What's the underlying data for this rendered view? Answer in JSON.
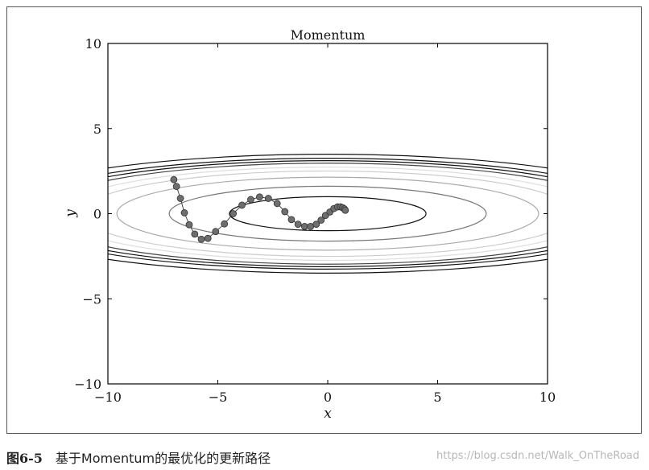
{
  "chart_data": {
    "type": "scatter",
    "title": "Momentum",
    "xlabel": "x",
    "ylabel": "y",
    "xlim": [
      -10,
      10
    ],
    "ylim": [
      -10,
      10
    ],
    "x_ticks": [
      "−10",
      "−5",
      "0",
      "5",
      "10"
    ],
    "y_ticks": [
      "10",
      "5",
      "0",
      "−5",
      "−10"
    ],
    "x_tick_values": [
      -10,
      -5,
      0,
      5,
      10
    ],
    "y_tick_values": [
      10,
      5,
      0,
      -5,
      -10
    ],
    "contour_function": "f(x, y) = x^2/20 + y^2",
    "contour_levels": [
      {
        "level": 1,
        "color": "#111111"
      },
      {
        "level": 2.6,
        "color": "#777777"
      },
      {
        "level": 4.6,
        "color": "#aaaaaa"
      },
      {
        "level": 6.3,
        "color": "#cccccc"
      },
      {
        "level": 7.5,
        "color": "#dddddd"
      },
      {
        "level": 8.8,
        "color": "#444444"
      },
      {
        "level": 9.7,
        "color": "#111111"
      },
      {
        "level": 10.6,
        "color": "#111111"
      },
      {
        "level": 12.2,
        "color": "#111111"
      }
    ],
    "series": [
      {
        "marker_color": "#6e6e6e",
        "x": [
          -7.0,
          -6.88,
          -6.7,
          -6.52,
          -6.3,
          -6.05,
          -5.75,
          -5.45,
          -5.1,
          -4.7,
          -4.3,
          -3.9,
          -3.5,
          -3.1,
          -2.7,
          -2.3,
          -1.95,
          -1.65,
          -1.35,
          -1.05,
          -0.78,
          -0.52,
          -0.3,
          -0.1,
          0.1,
          0.28,
          0.45,
          0.58,
          0.68,
          0.76,
          0.8
        ],
        "y": [
          2.0,
          1.6,
          0.9,
          0.05,
          -0.65,
          -1.2,
          -1.5,
          -1.45,
          -1.05,
          -0.6,
          0.0,
          0.5,
          0.83,
          0.98,
          0.9,
          0.6,
          0.12,
          -0.35,
          -0.62,
          -0.75,
          -0.75,
          -0.62,
          -0.38,
          -0.1,
          0.1,
          0.3,
          0.4,
          0.4,
          0.35,
          0.28,
          0.2
        ]
      }
    ],
    "grid": false
  },
  "caption": {
    "fig_no": "图6-5",
    "text": "基于Momentum的最优化的更新路径"
  },
  "watermark": "https://blog.csdn.net/Walk_OnTheRoad"
}
